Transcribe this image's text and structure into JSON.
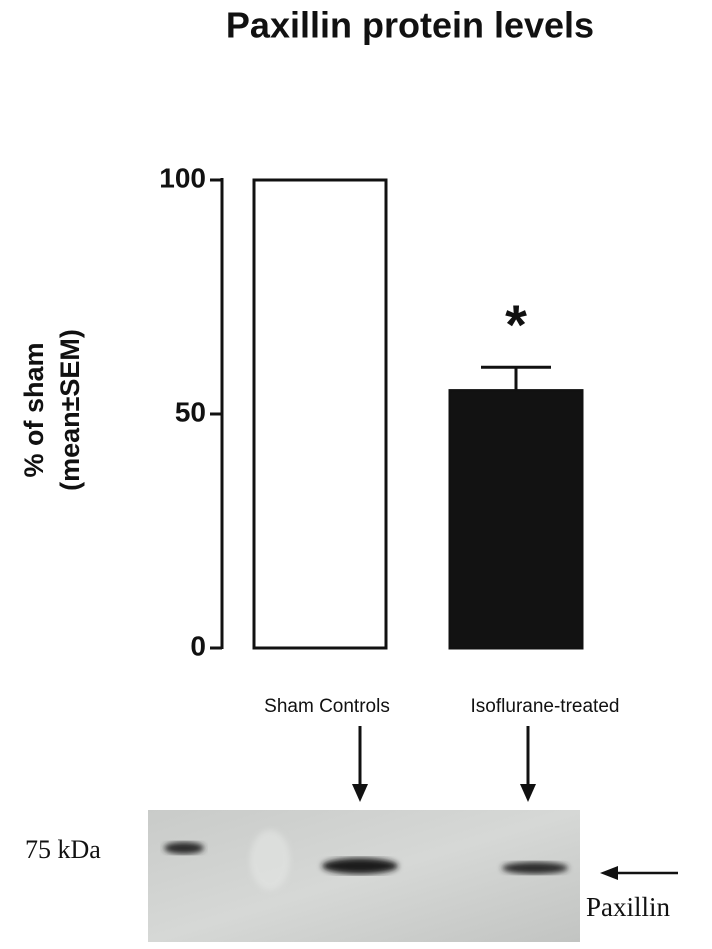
{
  "chart_data": {
    "type": "bar",
    "title": "Paxillin protein levels",
    "ylabel": [
      "% of sham",
      "(mean±SEM)"
    ],
    "categories": [
      "Sham Controls",
      "Isoflurane-treated"
    ],
    "values": [
      100,
      55
    ],
    "errors": [
      null,
      5
    ],
    "colors": [
      "#ffffff",
      "#121212"
    ],
    "annotation": "*",
    "ylim": [
      0,
      100
    ],
    "yticks": [
      0,
      50,
      100
    ],
    "blot_labels": {
      "marker": "75 kDa",
      "band": "Paxillin"
    }
  }
}
